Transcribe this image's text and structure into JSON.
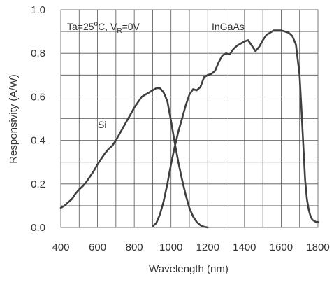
{
  "chart_data": {
    "type": "line",
    "title": "",
    "xlabel": "Wavelength  (nm)",
    "ylabel": "Responsivity  (A/W)",
    "xlim": [
      400,
      1800
    ],
    "ylim": [
      0,
      1.0
    ],
    "x_ticks": [
      400,
      600,
      800,
      1000,
      1200,
      1400,
      1600,
      1800
    ],
    "x_tick_labels": [
      "400",
      "600",
      "800",
      "1000",
      "1200",
      "1400",
      "1600",
      "1800"
    ],
    "x_grid_step": 100,
    "y_ticks": [
      0,
      0.2,
      0.4,
      0.6,
      0.8,
      1.0
    ],
    "y_tick_labels": [
      "0.0",
      "0.2",
      "0.4",
      "0.6",
      "0.8",
      "1.0"
    ],
    "y_grid_step": 0.1,
    "grid": true,
    "line_color": "#3f3f3f",
    "annotations": {
      "condition_prefix": "Ta=25",
      "condition_degree": "o",
      "condition_middle": "C, V",
      "condition_subscript": "R",
      "condition_suffix": "=0V"
    },
    "series": [
      {
        "name": "Si",
        "x": [
          400,
          420,
          440,
          460,
          480,
          500,
          520,
          540,
          560,
          580,
          600,
          620,
          640,
          660,
          680,
          700,
          720,
          740,
          760,
          780,
          800,
          820,
          840,
          860,
          880,
          900,
          920,
          940,
          960,
          980,
          1000,
          1020,
          1040,
          1060,
          1080,
          1100,
          1120,
          1140,
          1160,
          1180,
          1200
        ],
        "y": [
          0.09,
          0.1,
          0.115,
          0.13,
          0.155,
          0.175,
          0.19,
          0.21,
          0.235,
          0.26,
          0.29,
          0.315,
          0.34,
          0.36,
          0.375,
          0.4,
          0.43,
          0.46,
          0.49,
          0.52,
          0.55,
          0.575,
          0.6,
          0.61,
          0.62,
          0.63,
          0.64,
          0.64,
          0.62,
          0.58,
          0.49,
          0.39,
          0.3,
          0.22,
          0.15,
          0.09,
          0.05,
          0.025,
          0.01,
          0.003,
          0.0
        ]
      },
      {
        "name": "InGaAs",
        "x": [
          900,
          920,
          940,
          960,
          980,
          1000,
          1020,
          1040,
          1060,
          1080,
          1100,
          1120,
          1140,
          1160,
          1180,
          1200,
          1220,
          1240,
          1260,
          1280,
          1300,
          1320,
          1340,
          1360,
          1380,
          1400,
          1420,
          1440,
          1460,
          1480,
          1500,
          1520,
          1540,
          1560,
          1580,
          1600,
          1620,
          1640,
          1660,
          1680,
          1700,
          1710,
          1720,
          1730,
          1740,
          1750,
          1760,
          1770,
          1780,
          1790,
          1800
        ],
        "y": [
          0.005,
          0.02,
          0.06,
          0.12,
          0.2,
          0.29,
          0.37,
          0.44,
          0.5,
          0.56,
          0.61,
          0.635,
          0.63,
          0.645,
          0.69,
          0.7,
          0.705,
          0.72,
          0.76,
          0.79,
          0.8,
          0.795,
          0.82,
          0.835,
          0.845,
          0.855,
          0.86,
          0.835,
          0.81,
          0.83,
          0.86,
          0.885,
          0.895,
          0.905,
          0.905,
          0.905,
          0.9,
          0.895,
          0.88,
          0.84,
          0.7,
          0.55,
          0.38,
          0.22,
          0.13,
          0.08,
          0.05,
          0.035,
          0.03,
          0.025,
          0.025
        ]
      }
    ]
  }
}
